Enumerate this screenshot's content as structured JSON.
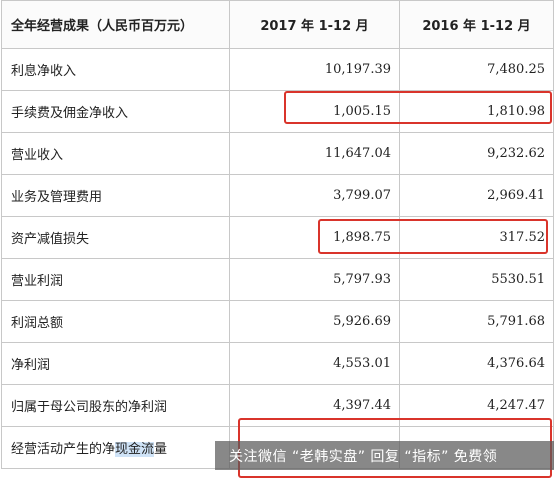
{
  "table": {
    "headers": [
      "全年经营成果（人民币百万元）",
      "2017 年 1-12 月",
      "2016 年 1-12 月"
    ],
    "rows": [
      {
        "label": "利息净收入",
        "y2017": "10,197.39",
        "y2016": "7,480.25"
      },
      {
        "label": "手续费及佣金净收入",
        "y2017": "1,005.15",
        "y2016": "1,810.98"
      },
      {
        "label": "营业收入",
        "y2017": "11,647.04",
        "y2016": "9,232.62"
      },
      {
        "label": "业务及管理费用",
        "y2017": "3,799.07",
        "y2016": "2,969.41"
      },
      {
        "label": "资产减值损失",
        "y2017": "1,898.75",
        "y2016": "317.52"
      },
      {
        "label": "营业利润",
        "y2017": "5,797.93",
        "y2016": "5530.51"
      },
      {
        "label": "利润总额",
        "y2017": "5,926.69",
        "y2016": "5,791.68"
      },
      {
        "label": "净利润",
        "y2017": "4,553.01",
        "y2016": "4,376.64"
      },
      {
        "label": "归属于母公司股东的净利润",
        "y2017": "4,397.44",
        "y2016": "4,247.47"
      }
    ],
    "last_row": {
      "label_before": "经营活动产生的净",
      "label_selected": "现金流",
      "label_after": "量"
    }
  },
  "watermark": {
    "text": "关注微信 “老韩实盘” 回复 “指标” 免费领"
  },
  "colors": {
    "highlight": "#d9342b",
    "border": "#c8c8c8",
    "selection": "#cfe3f7"
  }
}
